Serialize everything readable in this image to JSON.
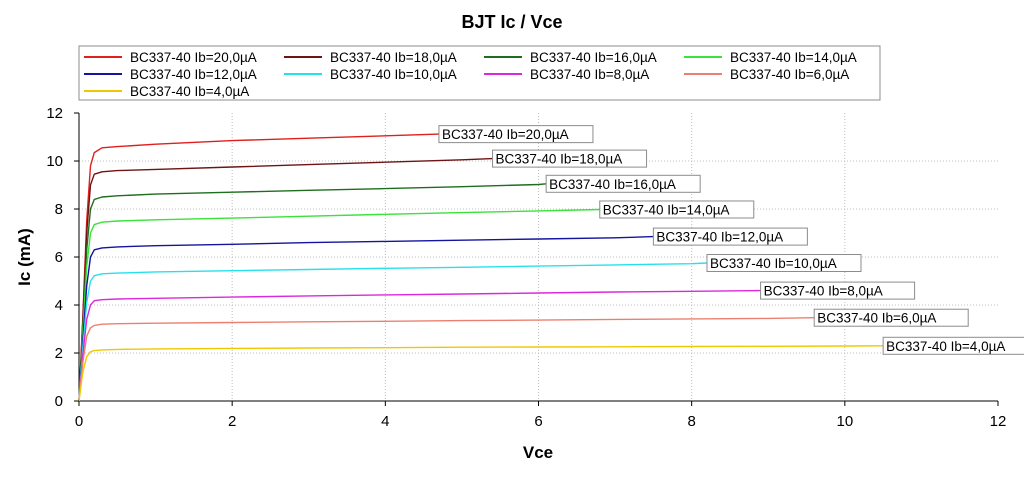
{
  "chart_data": {
    "type": "line",
    "title": "BJT Ic / Vce",
    "xlabel": "Vce",
    "ylabel": "Ic (mA)",
    "xlim": [
      0,
      12
    ],
    "ylim": [
      0,
      12
    ],
    "xticks": [
      0,
      2,
      4,
      6,
      8,
      10,
      12
    ],
    "yticks": [
      0,
      2,
      4,
      6,
      8,
      10,
      12
    ],
    "grid": true,
    "legend_position": "top",
    "series": [
      {
        "name": "BC337-40 Ib=20,0µA",
        "color": "#e0201c",
        "x": [
          0,
          0.05,
          0.1,
          0.15,
          0.2,
          0.3,
          0.5,
          1,
          2,
          3,
          4,
          4.7
        ],
        "y": [
          0,
          3.5,
          7.5,
          9.8,
          10.35,
          10.55,
          10.6,
          10.7,
          10.85,
          10.95,
          11.05,
          11.12
        ],
        "label_x": 4.7
      },
      {
        "name": "BC337-40 Ib=18,0µA",
        "color": "#6e1414",
        "x": [
          0,
          0.05,
          0.1,
          0.15,
          0.2,
          0.3,
          0.5,
          1,
          2,
          3,
          4,
          5,
          5.4
        ],
        "y": [
          0,
          3.3,
          7.0,
          9.0,
          9.45,
          9.55,
          9.6,
          9.65,
          9.75,
          9.85,
          9.95,
          10.05,
          10.1
        ],
        "label_x": 5.4
      },
      {
        "name": "BC337-40 Ib=16,0µA",
        "color": "#1e6e1e",
        "x": [
          0,
          0.05,
          0.1,
          0.15,
          0.2,
          0.3,
          0.5,
          1,
          2,
          3,
          4,
          5,
          6,
          6.1
        ],
        "y": [
          0,
          3.0,
          6.3,
          8.0,
          8.4,
          8.5,
          8.55,
          8.62,
          8.7,
          8.78,
          8.85,
          8.93,
          9.02,
          9.05
        ],
        "label_x": 6.1
      },
      {
        "name": "BC337-40 Ib=14,0µA",
        "color": "#3ae23a",
        "x": [
          0,
          0.05,
          0.1,
          0.15,
          0.2,
          0.3,
          0.5,
          1,
          2,
          3,
          4,
          5,
          6,
          6.8
        ],
        "y": [
          0,
          2.8,
          5.6,
          7.0,
          7.35,
          7.45,
          7.5,
          7.55,
          7.62,
          7.7,
          7.78,
          7.85,
          7.92,
          7.98
        ],
        "label_x": 6.8
      },
      {
        "name": "BC337-40 Ib=12,0µA",
        "color": "#1414a0",
        "x": [
          0,
          0.05,
          0.1,
          0.15,
          0.2,
          0.3,
          0.5,
          1,
          2,
          3,
          4,
          5,
          6,
          7,
          7.5
        ],
        "y": [
          0,
          2.5,
          4.8,
          6.0,
          6.3,
          6.38,
          6.42,
          6.47,
          6.53,
          6.6,
          6.65,
          6.7,
          6.75,
          6.8,
          6.85
        ],
        "label_x": 7.5
      },
      {
        "name": "BC337-40 Ib=10,0µA",
        "color": "#28e0ec",
        "x": [
          0,
          0.05,
          0.1,
          0.15,
          0.2,
          0.3,
          0.5,
          1,
          2,
          3,
          4,
          5,
          6,
          7,
          8,
          8.2
        ],
        "y": [
          0,
          2.2,
          4.1,
          5.0,
          5.22,
          5.3,
          5.33,
          5.38,
          5.43,
          5.48,
          5.53,
          5.57,
          5.62,
          5.67,
          5.72,
          5.75
        ],
        "label_x": 8.2
      },
      {
        "name": "BC337-40 Ib=8,0µA",
        "color": "#dc28dc",
        "x": [
          0,
          0.05,
          0.1,
          0.15,
          0.2,
          0.3,
          0.5,
          1,
          2,
          3,
          4,
          5,
          6,
          7,
          8,
          8.9
        ],
        "y": [
          0,
          1.9,
          3.4,
          4.0,
          4.18,
          4.22,
          4.25,
          4.28,
          4.33,
          4.38,
          4.42,
          4.46,
          4.5,
          4.54,
          4.57,
          4.6
        ],
        "label_x": 8.9
      },
      {
        "name": "BC337-40 Ib=6,0µA",
        "color": "#ec8070",
        "x": [
          0,
          0.05,
          0.1,
          0.15,
          0.2,
          0.3,
          0.5,
          1,
          2,
          3,
          4,
          5,
          6,
          7,
          8,
          9,
          9.6
        ],
        "y": [
          0,
          1.6,
          2.7,
          3.05,
          3.15,
          3.2,
          3.22,
          3.24,
          3.27,
          3.3,
          3.32,
          3.35,
          3.37,
          3.4,
          3.42,
          3.44,
          3.47
        ],
        "label_x": 9.6
      },
      {
        "name": "BC337-40 Ib=4,0µA",
        "color": "#f0c800",
        "x": [
          0,
          0.05,
          0.1,
          0.15,
          0.2,
          0.3,
          0.5,
          1,
          2,
          3,
          4,
          5,
          6,
          7,
          8,
          9,
          10,
          10.5
        ],
        "y": [
          0,
          1.2,
          1.85,
          2.05,
          2.1,
          2.13,
          2.15,
          2.17,
          2.19,
          2.21,
          2.22,
          2.24,
          2.25,
          2.26,
          2.27,
          2.28,
          2.29,
          2.3
        ],
        "label_x": 10.5
      }
    ]
  }
}
